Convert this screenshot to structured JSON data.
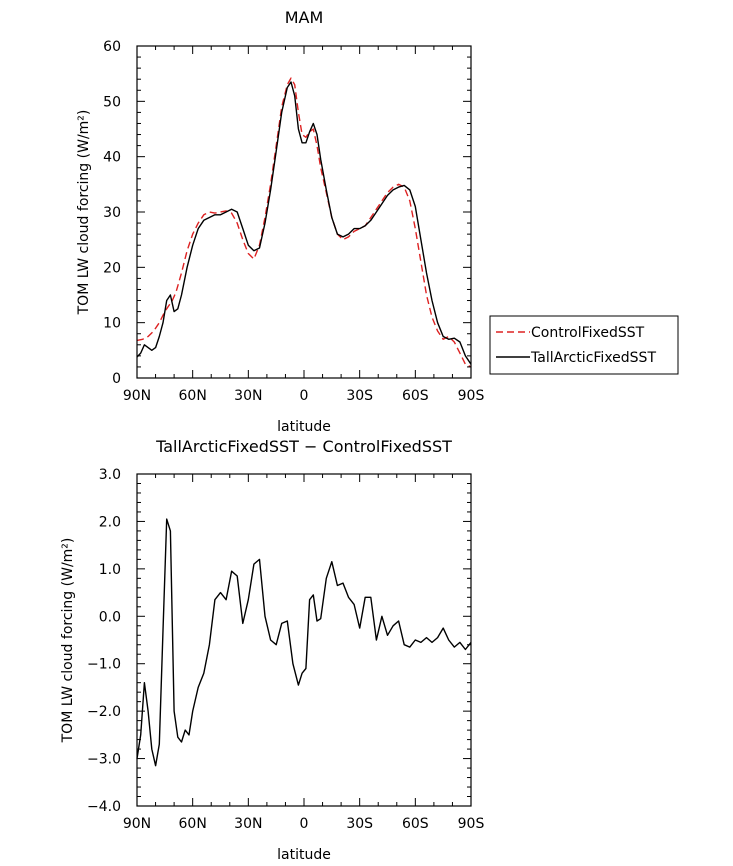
{
  "chart_data": [
    {
      "type": "line",
      "title": "MAM",
      "xlabel": "latitude",
      "ylabel": "TOM LW cloud forcing (W/m²)",
      "xlim": [
        90,
        -90
      ],
      "ylim": [
        0,
        60
      ],
      "x_ticks": [
        90,
        60,
        30,
        0,
        -30,
        -60,
        -90
      ],
      "x_tick_labels": [
        "90N",
        "60N",
        "30N",
        "0",
        "30S",
        "60S",
        "90S"
      ],
      "y_ticks": [
        0,
        10,
        20,
        30,
        40,
        50,
        60
      ],
      "y_tick_labels": [
        "0",
        "10",
        "20",
        "30",
        "40",
        "50",
        "60"
      ],
      "grid": false,
      "legend_position": "right",
      "series": [
        {
          "name": "ControlFixedSST",
          "color": "#dd2222",
          "dash": "dashed",
          "x": [
            90,
            87,
            84,
            81,
            78,
            75,
            73,
            71,
            69,
            66,
            63,
            60,
            57,
            54,
            51,
            48,
            45,
            42,
            39,
            36,
            33,
            30,
            27,
            24,
            21,
            18,
            15,
            12,
            9,
            7,
            5,
            3,
            1,
            -1,
            -3,
            -5,
            -7,
            -9,
            -12,
            -15,
            -18,
            -21,
            -24,
            -27,
            -30,
            -33,
            -36,
            -39,
            -42,
            -45,
            -48,
            -51,
            -54,
            -57,
            -60,
            -63,
            -66,
            -69,
            -72,
            -75,
            -78,
            -81,
            -84,
            -87,
            -90
          ],
          "y": [
            6.8,
            7.0,
            7.5,
            8.5,
            10.0,
            12.0,
            13.0,
            14.0,
            15.5,
            19.0,
            23.0,
            26.0,
            28.0,
            29.5,
            30.0,
            29.8,
            30.0,
            30.2,
            29.8,
            28.0,
            25.0,
            22.5,
            21.5,
            24.0,
            29.0,
            35.0,
            42.0,
            49.0,
            53.0,
            54.2,
            53.0,
            48.0,
            44.0,
            43.5,
            44.5,
            45.0,
            42.0,
            38.0,
            33.5,
            29.0,
            26.0,
            25.0,
            25.5,
            26.5,
            27.0,
            27.5,
            29.0,
            30.5,
            32.0,
            33.5,
            34.5,
            35.0,
            34.5,
            32.0,
            27.0,
            21.0,
            15.0,
            11.0,
            8.5,
            7.0,
            7.5,
            6.5,
            4.5,
            2.5,
            2.0
          ]
        },
        {
          "name": "TallArcticFixedSST",
          "color": "#000000",
          "dash": "solid",
          "x": [
            90,
            88,
            86,
            84,
            82,
            80,
            78,
            76,
            74,
            72,
            70,
            68,
            66,
            63,
            60,
            57,
            54,
            51,
            48,
            45,
            42,
            39,
            36,
            33,
            30,
            27,
            24,
            21,
            18,
            15,
            12,
            9,
            7,
            5,
            3,
            1,
            -1,
            -3,
            -5,
            -7,
            -9,
            -12,
            -15,
            -18,
            -21,
            -24,
            -27,
            -30,
            -33,
            -36,
            -39,
            -42,
            -45,
            -48,
            -51,
            -54,
            -57,
            -60,
            -63,
            -66,
            -69,
            -72,
            -75,
            -78,
            -81,
            -84,
            -87,
            -90
          ],
          "y": [
            3.8,
            4.5,
            6.0,
            5.5,
            5.0,
            5.5,
            7.5,
            10.0,
            14.0,
            15.0,
            12.0,
            12.5,
            15.0,
            20.0,
            24.0,
            27.0,
            28.5,
            29.0,
            29.5,
            29.5,
            30.0,
            30.5,
            30.0,
            27.0,
            24.0,
            23.0,
            23.5,
            28.0,
            34.0,
            41.0,
            48.0,
            52.5,
            53.5,
            51.0,
            45.0,
            42.5,
            42.5,
            44.5,
            46.0,
            44.0,
            39.5,
            34.0,
            29.0,
            26.0,
            25.5,
            26.0,
            27.0,
            27.0,
            27.5,
            28.5,
            30.0,
            31.5,
            33.0,
            34.0,
            34.5,
            34.8,
            34.0,
            31.0,
            25.0,
            19.0,
            14.0,
            10.0,
            7.5,
            7.0,
            7.2,
            6.5,
            4.0,
            2.5
          ]
        }
      ]
    },
    {
      "type": "line",
      "title": "TallArcticFixedSST − ControlFixedSST",
      "xlabel": "latitude",
      "ylabel": "TOM LW cloud forcing (W/m²)",
      "xlim": [
        90,
        -90
      ],
      "ylim": [
        -4,
        3
      ],
      "x_ticks": [
        90,
        60,
        30,
        0,
        -30,
        -60,
        -90
      ],
      "x_tick_labels": [
        "90N",
        "60N",
        "30N",
        "0",
        "30S",
        "60S",
        "90S"
      ],
      "y_ticks": [
        -4,
        -3,
        -2,
        -1,
        0,
        1,
        2,
        3
      ],
      "y_tick_labels": [
        "−4.0",
        "−3.0",
        "−2.0",
        "−1.0",
        "0.0",
        "1.0",
        "2.0",
        "3.0"
      ],
      "grid": false,
      "series": [
        {
          "color": "#000000",
          "dash": "solid",
          "x": [
            90,
            88,
            86,
            84,
            82,
            80,
            78,
            76,
            74,
            72,
            70,
            68,
            66,
            64,
            62,
            60,
            57,
            54,
            51,
            48,
            45,
            42,
            39,
            36,
            33,
            30,
            27,
            24,
            21,
            18,
            15,
            12,
            9,
            6,
            3,
            1,
            -1,
            -3,
            -5,
            -7,
            -9,
            -12,
            -15,
            -18,
            -21,
            -24,
            -27,
            -30,
            -33,
            -36,
            -39,
            -42,
            -45,
            -48,
            -51,
            -54,
            -57,
            -60,
            -63,
            -66,
            -69,
            -72,
            -75,
            -78,
            -81,
            -84,
            -87,
            -90
          ],
          "y": [
            -3.0,
            -2.5,
            -1.4,
            -2.0,
            -2.8,
            -3.15,
            -2.7,
            -0.3,
            2.05,
            1.8,
            -2.0,
            -2.55,
            -2.65,
            -2.4,
            -2.5,
            -2.0,
            -1.5,
            -1.2,
            -0.6,
            0.35,
            0.5,
            0.35,
            0.95,
            0.85,
            -0.15,
            0.35,
            1.1,
            1.2,
            0.0,
            -0.5,
            -0.6,
            -0.15,
            -0.1,
            -1.0,
            -1.45,
            -1.2,
            -1.1,
            0.35,
            0.45,
            -0.1,
            -0.05,
            0.8,
            1.15,
            0.65,
            0.7,
            0.4,
            0.25,
            -0.25,
            0.4,
            0.4,
            -0.5,
            0.0,
            -0.4,
            -0.2,
            -0.1,
            -0.6,
            -0.65,
            -0.5,
            -0.55,
            -0.45,
            -0.55,
            -0.45,
            -0.25,
            -0.5,
            -0.65,
            -0.55,
            -0.7,
            -0.55
          ]
        }
      ]
    }
  ]
}
